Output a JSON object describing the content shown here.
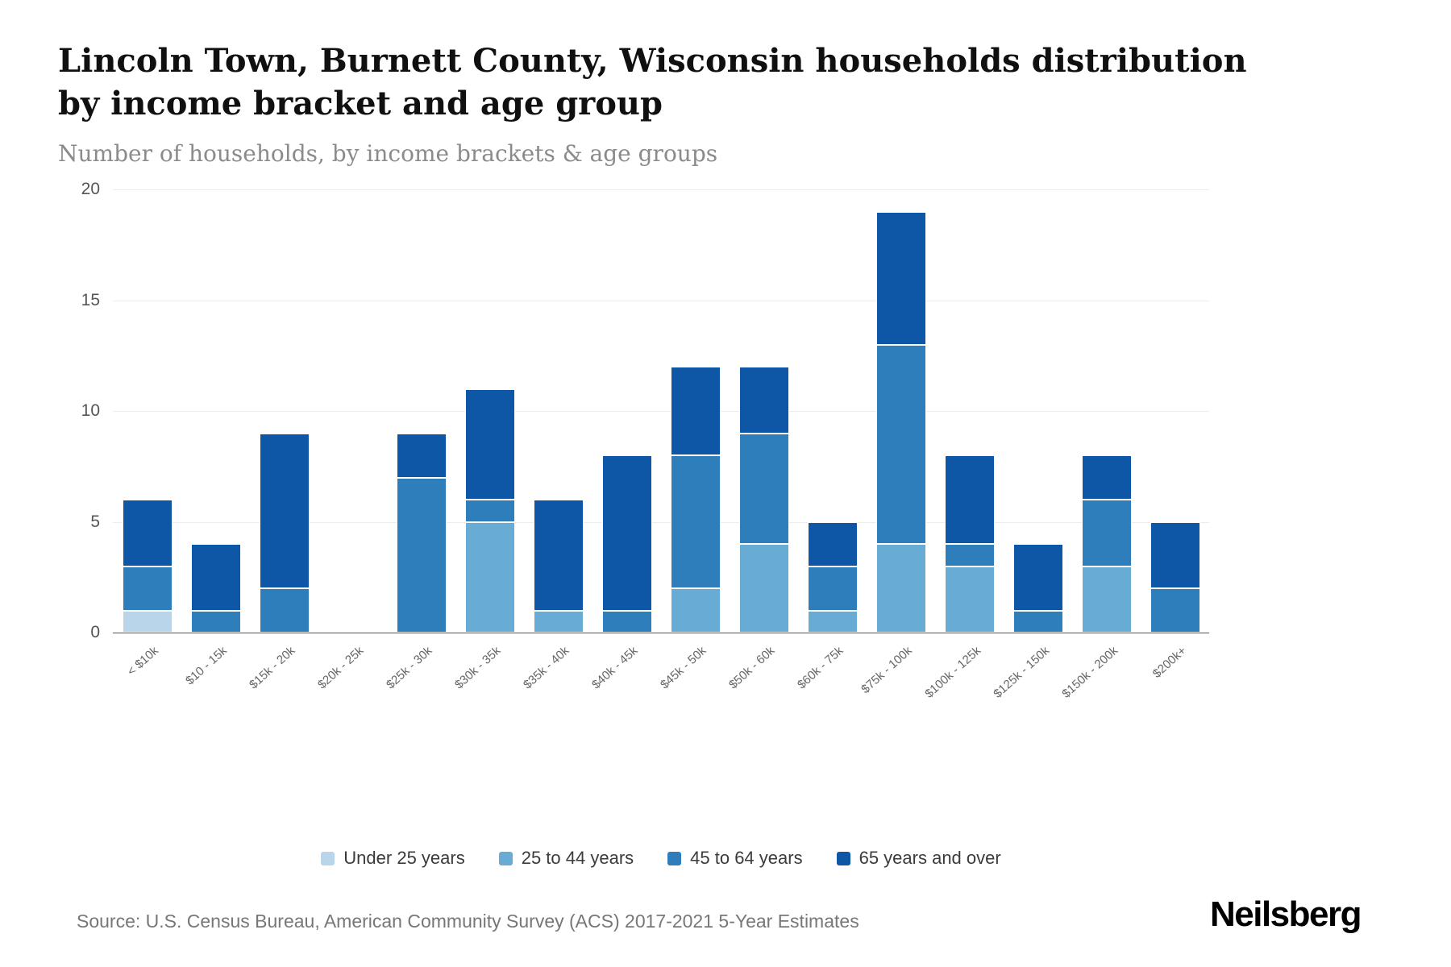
{
  "header": {
    "title": "Lincoln Town, Burnett County, Wisconsin households distribution by income bracket and age group",
    "subtitle": "Number of households, by income brackets & age groups"
  },
  "chart_data": {
    "type": "bar",
    "stacked": true,
    "title": "Lincoln Town, Burnett County, Wisconsin households distribution by income bracket and age group",
    "subtitle": "Number of households, by income brackets & age groups",
    "xlabel": "",
    "ylabel": "Number of households",
    "ylim": [
      0,
      20
    ],
    "yticks": [
      0,
      5,
      10,
      15,
      20
    ],
    "grid": true,
    "legend_position": "bottom",
    "categories": [
      "< $10k",
      "$10 - 15k",
      "$15k - 20k",
      "$20k - 25k",
      "$25k - 30k",
      "$30k - 35k",
      "$35k - 40k",
      "$40k - 45k",
      "$45k - 50k",
      "$50k - 60k",
      "$60k - 75k",
      "$75k - 100k",
      "$100k - 125k",
      "$125k - 150k",
      "$150k - 200k",
      "$200k+"
    ],
    "series": [
      {
        "name": "Under 25 years",
        "color": "#b8d5e9",
        "values": [
          1,
          0,
          0,
          0,
          0,
          0,
          0,
          0,
          0,
          0,
          0,
          0,
          0,
          0,
          0,
          0
        ]
      },
      {
        "name": "25 to 44 years",
        "color": "#68abd4",
        "values": [
          0,
          0,
          0,
          0,
          0,
          5,
          1,
          0,
          2,
          4,
          1,
          4,
          3,
          0,
          3,
          0
        ]
      },
      {
        "name": "45 to 64 years",
        "color": "#2f7ebc",
        "values": [
          2,
          1,
          2,
          0,
          7,
          1,
          0,
          1,
          6,
          5,
          2,
          9,
          1,
          1,
          3,
          2
        ]
      },
      {
        "name": "65 years and over",
        "color": "#0d57a6",
        "values": [
          3,
          3,
          7,
          0,
          2,
          5,
          5,
          7,
          4,
          3,
          2,
          6,
          4,
          3,
          2,
          3
        ]
      }
    ],
    "totals": [
      6,
      4,
      9,
      0,
      9,
      11,
      6,
      8,
      12,
      12,
      5,
      19,
      8,
      4,
      8,
      5
    ]
  },
  "footer": {
    "source": "Source: U.S. Census Bureau, American Community Survey (ACS) 2017-2021 5-Year Estimates",
    "brand": "Neilsberg"
  }
}
